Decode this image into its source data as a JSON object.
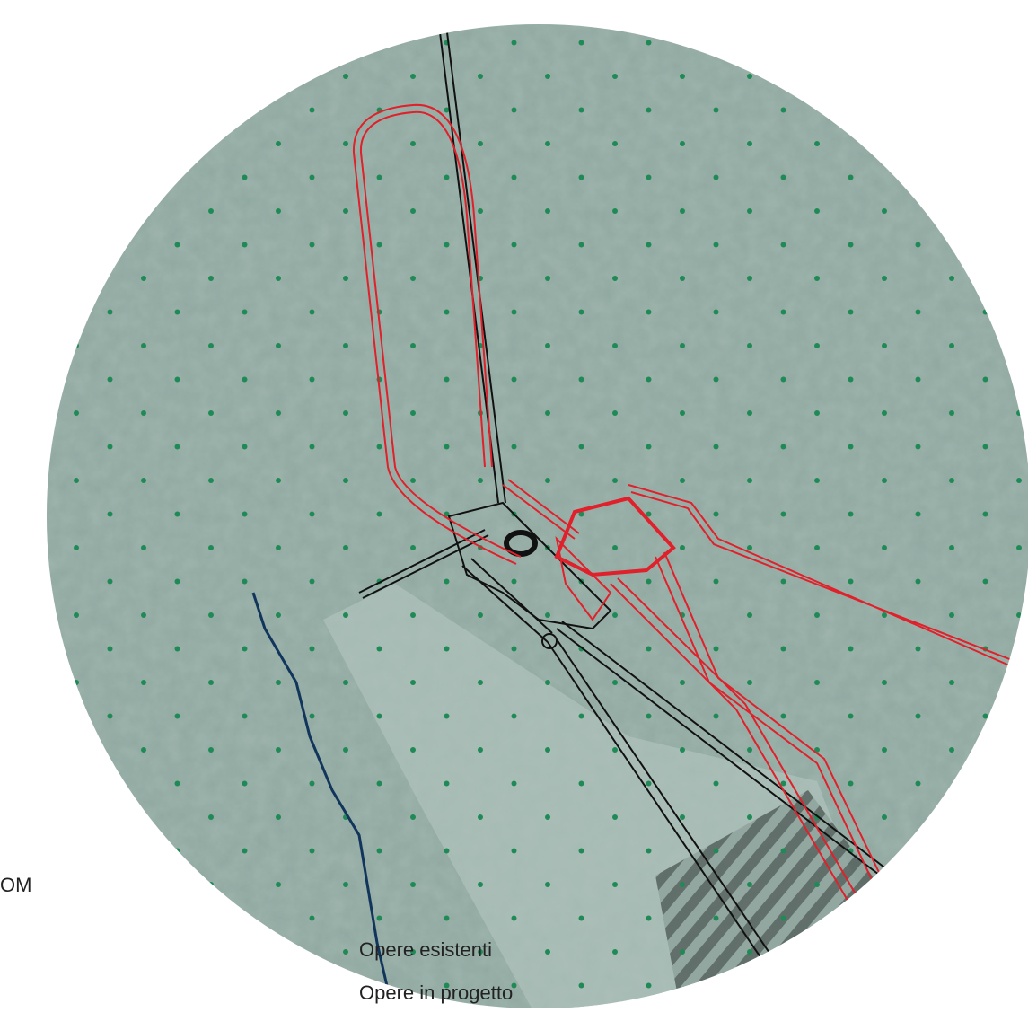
{
  "legend": {
    "title": "OM",
    "items": [
      "Opere esistenti",
      "Opere in progetto"
    ]
  }
}
